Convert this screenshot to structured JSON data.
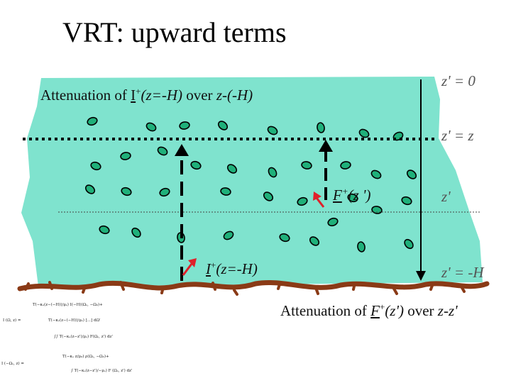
{
  "slide": {
    "title": "VRT: upward terms"
  },
  "diagram": {
    "colors": {
      "layer_fill": "#7fe3ce",
      "particle_fill": "#1fb07a",
      "ground": "#8a3a16",
      "arrow_red": "#e0202a",
      "arrow_black": "#000000"
    },
    "top_label": {
      "prefix": "Attenuation of ",
      "symbol": "I",
      "superscript": "+",
      "arg": "(z=-H)",
      "middle": " over ",
      "range": "z-(-H)"
    },
    "bottom_label": {
      "prefix": "Attenuation of ",
      "symbol": "F",
      "superscript": "+",
      "arg": "(z')",
      "middle": " over ",
      "range": "z-z'"
    },
    "source_label": {
      "symbol": "F",
      "superscript": "+",
      "arg": "(z ')"
    },
    "boundary_label": {
      "symbol": "I",
      "superscript": "+",
      "arg": "(z=-H)"
    },
    "axis_labels": {
      "top": "z' = 0",
      "level_z": "z' = z",
      "level_zp": "z'",
      "bottom": "z' = -H"
    }
  },
  "formulas": {
    "lhs_1": "I (Ω, z)  =",
    "line_1a": "T(−κₑ(z−(−H))/μₛ) I(−H)(Ωₛ, −Ω₀)+",
    "line_1b": "T(−κₑ(z−(−H))/μₛ) [...] dΩ'",
    "line_1c": "∫∫ T(−κₑ(z−z')/μₛ) F(Ωₛ, z') dz'",
    "lhs_2": "I (−Ωₛ, z)  =",
    "line_2a": "T(−κₑ z/μ₀) ρ(Ωₛ, −Ω₀)+",
    "line_2b": "∫ T(−κₑ(z−z')/−μₛ) F (Ωₛ, z') dz'"
  }
}
